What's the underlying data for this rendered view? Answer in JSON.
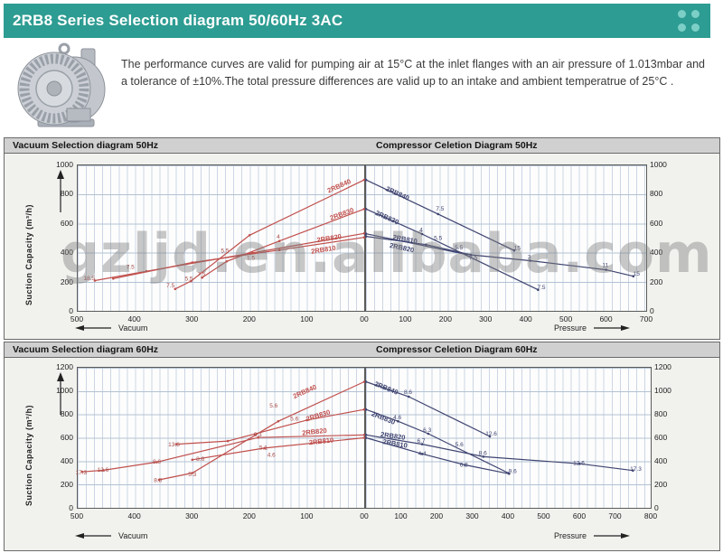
{
  "header": {
    "title": "2RB8 Series Selection diagram 50/60Hz 3AC",
    "bar_color": "#2d9c92",
    "dot_color": "#7ccfc7"
  },
  "intro": {
    "text": "The performance curves are valid for pumping air at 15°C at the inlet flanges with an air pressure of 1.013mbar and a tolerance of ±10%.The total pressure differences are valid up to an intake and ambient temperatrue of 25°C ."
  },
  "watermark": {
    "text": "gzljd.en.alibaba.com"
  },
  "panels": [
    {
      "left_title": "Vacuum Selection diagram 50Hz",
      "right_title": "Compressor Celetion Diagram 50Hz"
    },
    {
      "left_title": "Vacuum Selection diagram 60Hz",
      "right_title": "Compressor Celetion Diagram 60Hz"
    }
  ],
  "axis": {
    "vacuum_label": "Vacuum",
    "pressure_label": "Pressure",
    "suction_label": "Suction Capacity  (m³/h)"
  },
  "colors": {
    "vacuum_curve": "#c0504d",
    "compressor_curve": "#3f4470",
    "grid_vertical": "#ccd6e4",
    "grid_horizontal": "#b3c2d4",
    "panel_header_bg": "#d0d0d0"
  },
  "chart_data": [
    {
      "id": "vacuum-50hz",
      "type": "line",
      "title": "Vacuum Selection diagram 50Hz",
      "xlabel": "Vacuum",
      "ylabel": "Suction Capacity (m³/h)",
      "x_reversed": true,
      "xlim": [
        0,
        500
      ],
      "ylim": [
        0,
        1000
      ],
      "xticks": [
        "500",
        "400",
        "300",
        "200",
        "100",
        "00"
      ],
      "yticks": [
        "0",
        "200",
        "400",
        "600",
        "800",
        "1000"
      ],
      "color": "#c0504d",
      "annotation_color": "#a34a46",
      "series": [
        {
          "name": "2RB840",
          "points": [
            [
              330,
              150
            ],
            [
              302,
              205
            ],
            [
              200,
              520
            ],
            [
              0,
              900
            ]
          ]
        },
        {
          "name": "2RB830",
          "points": [
            [
              283,
              228
            ],
            [
              240,
              340
            ],
            [
              148,
              480
            ],
            [
              0,
              700
            ]
          ]
        },
        {
          "name": "2RB820",
          "points": [
            [
              470,
              208
            ],
            [
              380,
              272
            ],
            [
              195,
              398
            ],
            [
              0,
              532
            ]
          ]
        },
        {
          "name": "2RB810",
          "points": [
            [
              438,
              222
            ],
            [
              300,
              332
            ],
            [
              148,
              418
            ],
            [
              0,
              505
            ]
          ]
        }
      ],
      "series_labels": [
        {
          "text": "2RB840",
          "x": 62,
          "y": 810,
          "angle": -24
        },
        {
          "text": "2RB830",
          "x": 58,
          "y": 622,
          "angle": -20
        },
        {
          "text": "2RB820",
          "x": 82,
          "y": 470,
          "angle": -9
        },
        {
          "text": "2RB810",
          "x": 92,
          "y": 392,
          "angle": -9
        }
      ],
      "power_labels": [
        {
          "t": "18.5",
          "x": 480,
          "y": 212
        },
        {
          "t": "7.5",
          "x": 408,
          "y": 288
        },
        {
          "t": "7.5",
          "x": 338,
          "y": 162
        },
        {
          "t": "5.5",
          "x": 306,
          "y": 208
        },
        {
          "t": "5.5",
          "x": 243,
          "y": 402
        },
        {
          "t": "4",
          "x": 150,
          "y": 498
        },
        {
          "t": "7.5",
          "x": 284,
          "y": 238
        },
        {
          "t": "1.5",
          "x": 198,
          "y": 352
        }
      ]
    },
    {
      "id": "compressor-50hz",
      "type": "line",
      "title": "Compressor Celetion Diagram 50Hz",
      "xlabel": "Pressure",
      "ylabel": "Suction Capacity (m³/h)",
      "x_reversed": false,
      "xlim": [
        0,
        700
      ],
      "ylim": [
        0,
        1000
      ],
      "xticks": [
        "00",
        "100",
        "200",
        "300",
        "400",
        "500",
        "600",
        "700"
      ],
      "yticks": [
        "0",
        "200",
        "400",
        "600",
        "800",
        "1000"
      ],
      "color": "#3f4470",
      "annotation_color": "#3f4470",
      "series": [
        {
          "name": "2RB840",
          "points": [
            [
              0,
              900
            ],
            [
              180,
              665
            ],
            [
              370,
              415
            ]
          ]
        },
        {
          "name": "2RB830",
          "points": [
            [
              0,
              700
            ],
            [
              140,
              528
            ],
            [
              430,
              145
            ]
          ]
        },
        {
          "name": "2RB810",
          "points": [
            [
              0,
              530
            ],
            [
              250,
              388
            ],
            [
              410,
              345
            ],
            [
              600,
              282
            ],
            [
              668,
              238
            ]
          ]
        },
        {
          "name": "2RB820",
          "points": [
            [
              0,
              512
            ],
            [
              150,
              455
            ],
            [
              262,
              385
            ]
          ]
        }
      ],
      "series_labels": [
        {
          "text": "2RB840",
          "x": 48,
          "y": 828,
          "angle": 24
        },
        {
          "text": "2RB830",
          "x": 22,
          "y": 662,
          "angle": 24
        },
        {
          "text": "2RB810",
          "x": 66,
          "y": 492,
          "angle": 10
        },
        {
          "text": "2RB820",
          "x": 58,
          "y": 436,
          "angle": 12
        }
      ],
      "power_labels": [
        {
          "t": "7.5",
          "x": 185,
          "y": 688
        },
        {
          "t": "15",
          "x": 378,
          "y": 418
        },
        {
          "t": "4",
          "x": 138,
          "y": 542
        },
        {
          "t": "5.5",
          "x": 180,
          "y": 488
        },
        {
          "t": "5.5",
          "x": 232,
          "y": 422
        },
        {
          "t": "7.5",
          "x": 268,
          "y": 352
        },
        {
          "t": "7.5",
          "x": 438,
          "y": 148
        },
        {
          "t": "3",
          "x": 408,
          "y": 358
        },
        {
          "t": "11",
          "x": 598,
          "y": 300
        },
        {
          "t": "15",
          "x": 676,
          "y": 242
        }
      ]
    },
    {
      "id": "vacuum-60hz",
      "type": "line",
      "title": "Vacuum Selection diagram 60Hz",
      "xlabel": "Vacuum",
      "ylabel": "Suction Capacity (m³/h)",
      "x_reversed": true,
      "xlim": [
        0,
        500
      ],
      "ylim": [
        0,
        1200
      ],
      "xticks": [
        "500",
        "400",
        "300",
        "200",
        "100",
        "00"
      ],
      "yticks": [
        "0",
        "200",
        "400",
        "600",
        "800",
        "1000",
        "1200"
      ],
      "color": "#c0504d",
      "annotation_color": "#a34a46",
      "series": [
        {
          "name": "2RB840",
          "points": [
            [
              358,
              240
            ],
            [
              300,
              298
            ],
            [
              150,
              742
            ],
            [
              0,
              1080
            ]
          ]
        },
        {
          "name": "2RB830",
          "points": [
            [
              328,
              545
            ],
            [
              238,
              572
            ],
            [
              100,
              752
            ],
            [
              0,
              842
            ]
          ]
        },
        {
          "name": "2RB820",
          "points": [
            [
              492,
              308
            ],
            [
              455,
              322
            ],
            [
              362,
              392
            ],
            [
              185,
              602
            ],
            [
              0,
              625
            ]
          ]
        },
        {
          "name": "2RB810",
          "points": [
            [
              300,
              412
            ],
            [
              174,
              512
            ],
            [
              0,
              600
            ]
          ]
        }
      ],
      "series_labels": [
        {
          "text": "2RB840",
          "x": 122,
          "y": 935,
          "angle": -24
        },
        {
          "text": "2RB830",
          "x": 100,
          "y": 742,
          "angle": -17
        },
        {
          "text": "2RB820",
          "x": 108,
          "y": 622,
          "angle": -6
        },
        {
          "text": "2RB810",
          "x": 96,
          "y": 540,
          "angle": -6
        }
      ],
      "power_labels": [
        {
          "t": "17.3",
          "x": 494,
          "y": 288
        },
        {
          "t": "12.6",
          "x": 456,
          "y": 308
        },
        {
          "t": "8.6",
          "x": 362,
          "y": 380
        },
        {
          "t": "8.8",
          "x": 360,
          "y": 222
        },
        {
          "t": "5.3",
          "x": 300,
          "y": 272
        },
        {
          "t": "13.6",
          "x": 332,
          "y": 528
        },
        {
          "t": "5.6",
          "x": 158,
          "y": 860
        },
        {
          "t": "5.6",
          "x": 122,
          "y": 748
        },
        {
          "t": "6.3",
          "x": 186,
          "y": 612
        },
        {
          "t": "8.6",
          "x": 286,
          "y": 402
        },
        {
          "t": "5.1",
          "x": 176,
          "y": 500
        },
        {
          "t": "4.6",
          "x": 162,
          "y": 438
        }
      ]
    },
    {
      "id": "compressor-60hz",
      "type": "line",
      "title": "Compressor Celetion Diagram 60Hz",
      "xlabel": "Pressure",
      "ylabel": "Suction Capacity (m³/h)",
      "x_reversed": false,
      "xlim": [
        0,
        800
      ],
      "ylim": [
        0,
        1200
      ],
      "xticks": [
        "00",
        "100",
        "200",
        "300",
        "400",
        "500",
        "600",
        "700",
        "800"
      ],
      "yticks": [
        "0",
        "200",
        "400",
        "600",
        "800",
        "1000",
        "1200"
      ],
      "color": "#3f4470",
      "annotation_color": "#3f4470",
      "series": [
        {
          "name": "2RB840",
          "points": [
            [
              0,
              1080
            ],
            [
              120,
              952
            ],
            [
              348,
              612
            ]
          ]
        },
        {
          "name": "2RB830",
          "points": [
            [
              0,
              842
            ],
            [
              90,
              742
            ],
            [
              175,
              635
            ],
            [
              400,
              298
            ]
          ]
        },
        {
          "name": "2RB820",
          "points": [
            [
              0,
              625
            ],
            [
              158,
              545
            ],
            [
              330,
              438
            ],
            [
              600,
              378
            ],
            [
              750,
              320
            ]
          ]
        },
        {
          "name": "2RB810",
          "points": [
            [
              0,
              600
            ],
            [
              158,
              462
            ],
            [
              278,
              368
            ],
            [
              402,
              292
            ]
          ]
        }
      ],
      "series_labels": [
        {
          "text": "2RB840",
          "x": 22,
          "y": 1048,
          "angle": 22
        },
        {
          "text": "2RB830",
          "x": 14,
          "y": 792,
          "angle": 22
        },
        {
          "text": "2RB820",
          "x": 40,
          "y": 612,
          "angle": 8
        },
        {
          "text": "2RB810",
          "x": 46,
          "y": 550,
          "angle": 10
        }
      ],
      "power_labels": [
        {
          "t": "8.6",
          "x": 118,
          "y": 975
        },
        {
          "t": "12.6",
          "x": 352,
          "y": 618
        },
        {
          "t": "4.6",
          "x": 88,
          "y": 758
        },
        {
          "t": "6.3",
          "x": 172,
          "y": 652
        },
        {
          "t": "9.6",
          "x": 412,
          "y": 298
        },
        {
          "t": "6.7",
          "x": 155,
          "y": 558
        },
        {
          "t": "5.6",
          "x": 262,
          "y": 528
        },
        {
          "t": "8.6",
          "x": 328,
          "y": 452
        },
        {
          "t": "12.6",
          "x": 598,
          "y": 368
        },
        {
          "t": "17.3",
          "x": 758,
          "y": 318
        },
        {
          "t": "4.4",
          "x": 158,
          "y": 448
        },
        {
          "t": "6.3",
          "x": 275,
          "y": 352
        }
      ]
    }
  ]
}
